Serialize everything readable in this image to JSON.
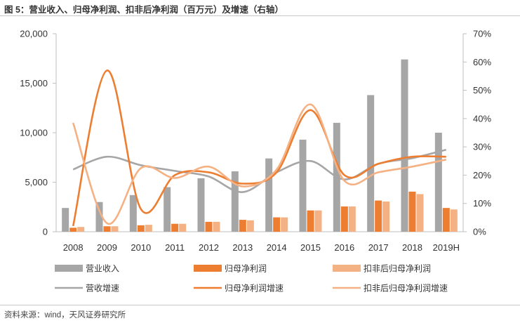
{
  "header": {
    "title": "图 5：营业收入、归母净利润、扣非后净利润（百万元）及增速（右轴）"
  },
  "footer": {
    "source": "资料来源：wind，天风证券研究所"
  },
  "chart_data": {
    "type": "bar",
    "categories": [
      "2008",
      "2009",
      "2010",
      "2011",
      "2012",
      "2013",
      "2014",
      "2015",
      "2016",
      "2017",
      "2018",
      "2019H"
    ],
    "y_left": {
      "ylim": [
        0,
        20000
      ],
      "ticks": [
        "0",
        "5,000",
        "10,000",
        "15,000",
        "20,000"
      ]
    },
    "y_right": {
      "ylim": [
        0,
        0.7
      ],
      "ticks": [
        "0%",
        "10%",
        "20%",
        "30%",
        "40%",
        "50%",
        "60%",
        "70%"
      ]
    },
    "grid": false,
    "legend_position": "bottom",
    "series": [
      {
        "name": "营业收入",
        "kind": "bar",
        "axis": "left",
        "color": "#a6a6a6",
        "values": [
          2400,
          3000,
          3700,
          4500,
          5400,
          6100,
          7400,
          9300,
          11000,
          13800,
          17400,
          10000
        ]
      },
      {
        "name": "归母净利润",
        "kind": "bar",
        "axis": "left",
        "color": "#ed7d31",
        "values": [
          400,
          550,
          650,
          800,
          1000,
          1200,
          1450,
          2150,
          2550,
          3150,
          4050,
          2400
        ]
      },
      {
        "name": "扣非后归母净利润",
        "kind": "bar",
        "axis": "left",
        "color": "#f4b183",
        "values": [
          480,
          550,
          700,
          800,
          1000,
          1150,
          1450,
          2150,
          2550,
          3050,
          3800,
          2250
        ]
      },
      {
        "name": "营收增速",
        "kind": "line",
        "axis": "right",
        "color": "#a6a6a6",
        "values": [
          0.22,
          0.265,
          0.235,
          0.215,
          0.195,
          0.14,
          0.21,
          0.25,
          0.185,
          0.24,
          0.26,
          0.29
        ]
      },
      {
        "name": "归母净利润增速",
        "kind": "line",
        "axis": "right",
        "color": "#ed7d31",
        "values": [
          0.02,
          0.57,
          0.08,
          0.2,
          0.21,
          0.17,
          0.21,
          0.43,
          0.2,
          0.24,
          0.265,
          0.265
        ]
      },
      {
        "name": "扣非后归母净利润增速",
        "kind": "line",
        "axis": "right",
        "color": "#f4b183",
        "values": [
          0.385,
          0.03,
          0.225,
          0.19,
          0.23,
          0.16,
          0.22,
          0.45,
          0.18,
          0.21,
          0.23,
          0.255
        ]
      }
    ]
  }
}
